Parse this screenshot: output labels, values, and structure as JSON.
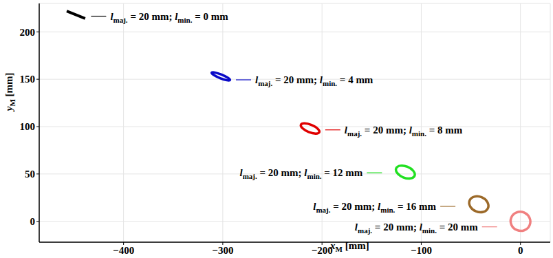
{
  "chart_data": {
    "type": "scatter",
    "x_label": "xM [mm]",
    "y_label": "yM [mm]",
    "xlim": [
      -485,
      30
    ],
    "ylim": [
      -22,
      230
    ],
    "xticks": [
      {
        "value": -400,
        "label": "−400"
      },
      {
        "value": -300,
        "label": "−300"
      },
      {
        "value": -200,
        "label": "−200"
      },
      {
        "value": -100,
        "label": "−100"
      },
      0
    ],
    "yticks": [
      0,
      50,
      100,
      150,
      200
    ],
    "grid": true,
    "marker": "ellipse",
    "series": [
      {
        "name": "lmaj. = 20 mm; lmin. = 0 mm",
        "color": "#000000",
        "x": [
          -448
        ],
        "y": [
          218
        ],
        "major": [
          20
        ],
        "minor": [
          0
        ],
        "angle": [
          -22
        ]
      },
      {
        "name": "lmaj. = 20 mm; lmin. = 4 mm",
        "color": "#0a0ac8",
        "x": [
          -302
        ],
        "y": [
          153
        ],
        "major": [
          20
        ],
        "minor": [
          4
        ],
        "angle": [
          -22
        ]
      },
      {
        "name": "lmaj. = 20 mm; lmin. = 8 mm",
        "color": "#e00000",
        "x": [
          -212
        ],
        "y": [
          98
        ],
        "major": [
          20
        ],
        "minor": [
          8
        ],
        "angle": [
          -22
        ]
      },
      {
        "name": "lmaj. = 20 mm; lmin. = 12 mm",
        "color": "#22e022",
        "x": [
          -116
        ],
        "y": [
          52
        ],
        "major": [
          20
        ],
        "minor": [
          12
        ],
        "angle": [
          -22
        ]
      },
      {
        "name": "lmaj. = 20 mm; lmin. = 16 mm",
        "color": "#9c6a2a",
        "x": [
          -42
        ],
        "y": [
          18
        ],
        "major": [
          20
        ],
        "minor": [
          16
        ],
        "angle": [
          -22
        ]
      },
      {
        "name": "lmaj. = 20 mm; lmin. = 20 mm",
        "color": "#f08080",
        "x": [
          0
        ],
        "y": [
          0
        ],
        "major": [
          20
        ],
        "minor": [
          20
        ],
        "angle": [
          -22
        ]
      }
    ]
  }
}
